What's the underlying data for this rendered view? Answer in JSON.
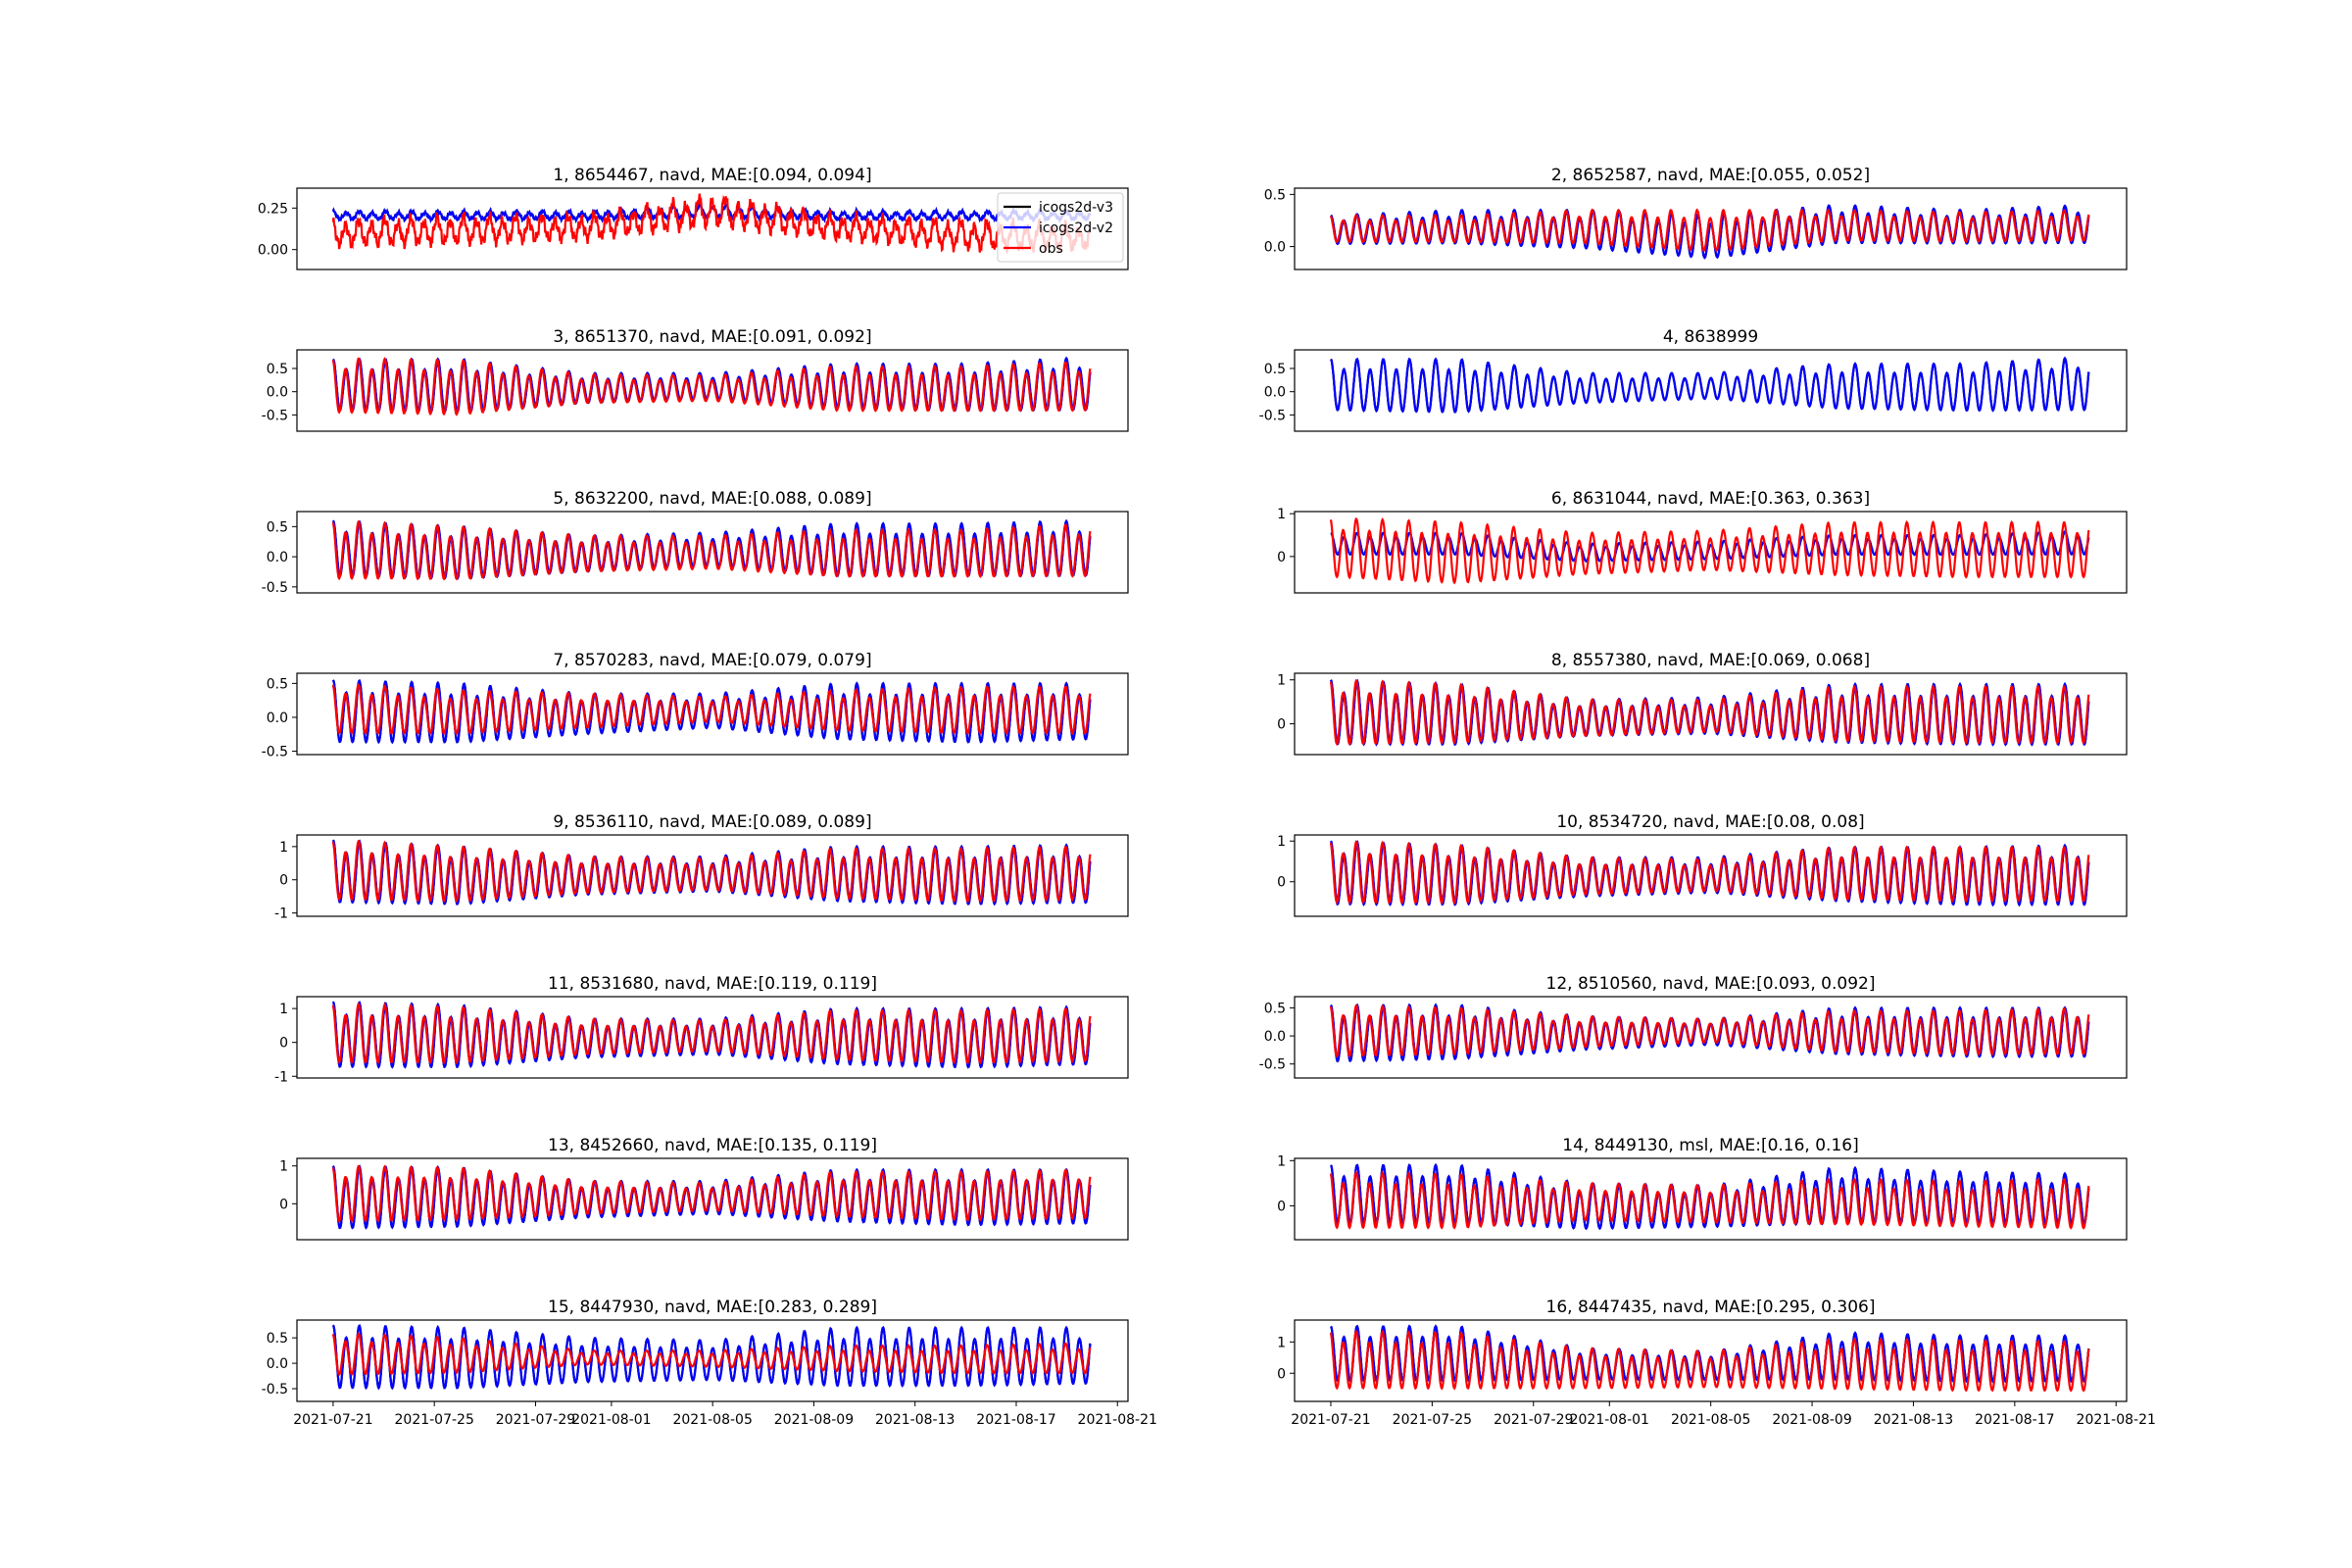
{
  "chart_data": {
    "type": "line",
    "layout": "8x2 grid of subplots",
    "x_ticks": [
      "2021-07-21",
      "2021-07-25",
      "2021-07-29",
      "2021-08-01",
      "2021-08-05",
      "2021-08-09",
      "2021-08-13",
      "2021-08-17",
      "2021-08-21"
    ],
    "xlim": [
      "2021-07-19 13:40",
      "2021-08-21 10:00"
    ],
    "data_range": [
      "2021-07-21",
      "2021-08-20"
    ],
    "envelope_dates": [
      "2021-07-21",
      "2021-07-26",
      "2021-07-31",
      "2021-08-05",
      "2021-08-10",
      "2021-08-15",
      "2021-08-20"
    ],
    "legend": {
      "placement": "upper right of subplot 1",
      "entries": [
        {
          "name": "icogs2d-v3",
          "color": "#000000"
        },
        {
          "name": "icogs2d-v2",
          "color": "#0000ff"
        },
        {
          "name": "obs",
          "color": "#ff0000"
        }
      ]
    },
    "grid": false,
    "panels": [
      {
        "title": "1, 8654467, navd, MAE:[0.094, 0.094]",
        "ylim": [
          -0.12,
          0.37
        ],
        "yticks": [
          "0.25",
          "0.00"
        ],
        "ytick_values": [
          0.25,
          0
        ],
        "model": {
          "high": [
            0.23,
            0.23,
            0.23,
            0.27,
            0.23,
            0.23,
            0.23
          ],
          "low": [
            0.18,
            0.18,
            0.18,
            0.19,
            0.18,
            0.18,
            0.18
          ]
        },
        "obs": {
          "high": [
            0.17,
            0.2,
            0.2,
            0.32,
            0.2,
            0.17,
            0.14
          ],
          "low": [
            0.02,
            0.03,
            0.06,
            0.14,
            0.06,
            0.0,
            0.0
          ]
        }
      },
      {
        "title": "2, 8652587, navd, MAE:[0.055, 0.052]",
        "ylim": [
          -0.22,
          0.56
        ],
        "yticks": [
          "0.5",
          "0.0"
        ],
        "ytick_values": [
          0.5,
          0
        ],
        "model": {
          "high": [
            0.3,
            0.35,
            0.35,
            0.3,
            0.4,
            0.35,
            0.4
          ],
          "low": [
            0.0,
            0.0,
            -0.05,
            -0.15,
            0.0,
            0.0,
            0.0
          ]
        },
        "obs": {
          "high": [
            0.3,
            0.3,
            0.35,
            0.35,
            0.35,
            0.33,
            0.35
          ],
          "low": [
            0.02,
            0.02,
            0.0,
            -0.08,
            0.03,
            0.02,
            0.03
          ]
        }
      },
      {
        "title": "3, 8651370, navd, MAE:[0.091, 0.092]",
        "ylim": [
          -0.85,
          0.9
        ],
        "yticks": [
          "0.5",
          "0.0",
          "-0.5"
        ],
        "ytick_values": [
          0.5,
          0,
          -0.5
        ],
        "model": {
          "high": [
            0.7,
            0.7,
            0.4,
            0.4,
            0.6,
            0.6,
            0.75
          ],
          "low": [
            -0.5,
            -0.55,
            -0.3,
            -0.2,
            -0.45,
            -0.5,
            -0.5
          ]
        },
        "obs": {
          "high": [
            0.72,
            0.68,
            0.38,
            0.35,
            0.55,
            0.55,
            0.65
          ],
          "low": [
            -0.55,
            -0.6,
            -0.3,
            -0.25,
            -0.5,
            -0.5,
            -0.5
          ]
        }
      },
      {
        "title": "4, 8638999",
        "ylim": [
          -0.85,
          0.9
        ],
        "yticks": [
          "0.5",
          "0.0",
          "-0.5"
        ],
        "ytick_values": [
          0.5,
          0,
          -0.5
        ],
        "model": {
          "high": [
            0.7,
            0.7,
            0.4,
            0.4,
            0.6,
            0.6,
            0.75
          ],
          "low": [
            -0.5,
            -0.55,
            -0.3,
            -0.2,
            -0.45,
            -0.5,
            -0.5
          ]
        },
        "obs": null
      },
      {
        "title": "5, 8632200, navd, MAE:[0.088, 0.089]",
        "ylim": [
          -0.6,
          0.75
        ],
        "yticks": [
          "0.5",
          "0.0",
          "-0.5"
        ],
        "ytick_values": [
          0.5,
          0,
          -0.5
        ],
        "model": {
          "high": [
            0.6,
            0.5,
            0.35,
            0.4,
            0.55,
            0.55,
            0.6
          ],
          "low": [
            -0.4,
            -0.45,
            -0.3,
            -0.2,
            -0.4,
            -0.4,
            -0.4
          ]
        },
        "obs": {
          "high": [
            0.6,
            0.5,
            0.35,
            0.35,
            0.45,
            0.45,
            0.55
          ],
          "low": [
            -0.45,
            -0.45,
            -0.3,
            -0.25,
            -0.4,
            -0.4,
            -0.4
          ]
        }
      },
      {
        "title": "6, 8631044, navd, MAE:[0.363, 0.363]",
        "ylim": [
          -0.85,
          1.05
        ],
        "yticks": [
          "1",
          "0"
        ],
        "ytick_values": [
          1,
          0
        ],
        "model": {
          "high": [
            0.55,
            0.55,
            0.3,
            0.35,
            0.5,
            0.5,
            0.6
          ],
          "low": [
            0.0,
            0.0,
            -0.15,
            -0.1,
            0.0,
            0.0,
            0.0
          ]
        },
        "obs": {
          "high": [
            0.9,
            0.8,
            0.55,
            0.6,
            0.8,
            0.8,
            0.8
          ],
          "low": [
            -0.6,
            -0.75,
            -0.5,
            -0.4,
            -0.55,
            -0.6,
            -0.6
          ]
        }
      },
      {
        "title": "7, 8570283, navd, MAE:[0.079, 0.079]",
        "ylim": [
          -0.55,
          0.65
        ],
        "yticks": [
          "0.5",
          "0.0",
          "-0.5"
        ],
        "ytick_values": [
          0.5,
          0,
          -0.5
        ],
        "model": {
          "high": [
            0.55,
            0.5,
            0.35,
            0.35,
            0.5,
            0.5,
            0.5
          ],
          "low": [
            -0.45,
            -0.45,
            -0.3,
            -0.2,
            -0.4,
            -0.45,
            -0.4
          ]
        },
        "obs": {
          "high": [
            0.5,
            0.4,
            0.35,
            0.3,
            0.4,
            0.45,
            0.45
          ],
          "low": [
            -0.3,
            -0.3,
            -0.2,
            -0.1,
            -0.25,
            -0.3,
            -0.3
          ]
        }
      },
      {
        "title": "8, 8557380, navd, MAE:[0.069, 0.068]",
        "ylim": [
          -0.7,
          1.15
        ],
        "yticks": [
          "1",
          "0"
        ],
        "ytick_values": [
          1,
          0
        ],
        "model": {
          "high": [
            1.0,
            0.9,
            0.55,
            0.6,
            0.9,
            0.9,
            0.9
          ],
          "low": [
            -0.6,
            -0.6,
            -0.35,
            -0.3,
            -0.55,
            -0.6,
            -0.6
          ]
        },
        "obs": {
          "high": [
            1.0,
            0.9,
            0.55,
            0.55,
            0.85,
            0.85,
            0.85
          ],
          "low": [
            -0.6,
            -0.55,
            -0.35,
            -0.25,
            -0.5,
            -0.55,
            -0.55
          ]
        }
      },
      {
        "title": "9, 8536110, navd, MAE:[0.089, 0.089]",
        "ylim": [
          -1.1,
          1.35
        ],
        "yticks": [
          "1",
          "0",
          "-1"
        ],
        "ytick_values": [
          1,
          0,
          -1
        ],
        "model": {
          "high": [
            1.2,
            1.0,
            0.7,
            0.7,
            1.0,
            1.0,
            1.05
          ],
          "low": [
            -0.85,
            -0.9,
            -0.55,
            -0.45,
            -0.8,
            -0.9,
            -0.85
          ]
        },
        "obs": {
          "high": [
            1.2,
            1.0,
            0.7,
            0.65,
            0.95,
            0.95,
            1.0
          ],
          "low": [
            -0.75,
            -0.8,
            -0.5,
            -0.4,
            -0.7,
            -0.8,
            -0.75
          ]
        }
      },
      {
        "title": "10, 8534720, navd, MAE:[0.08, 0.08]",
        "ylim": [
          -0.85,
          1.15
        ],
        "yticks": [
          "1",
          "0"
        ],
        "ytick_values": [
          1,
          0
        ],
        "model": {
          "high": [
            1.0,
            0.9,
            0.6,
            0.6,
            0.85,
            0.85,
            0.9
          ],
          "low": [
            -0.7,
            -0.7,
            -0.45,
            -0.35,
            -0.6,
            -0.7,
            -0.7
          ]
        },
        "obs": {
          "high": [
            1.0,
            0.9,
            0.6,
            0.55,
            0.85,
            0.85,
            0.85
          ],
          "low": [
            -0.65,
            -0.65,
            -0.4,
            -0.3,
            -0.55,
            -0.6,
            -0.6
          ]
        }
      },
      {
        "title": "11, 8531680, navd, MAE:[0.119, 0.119]",
        "ylim": [
          -1.05,
          1.35
        ],
        "yticks": [
          "1",
          "0",
          "-1"
        ],
        "ytick_values": [
          1,
          0,
          -1
        ],
        "model": {
          "high": [
            1.2,
            1.1,
            0.7,
            0.7,
            1.0,
            1.0,
            1.05
          ],
          "low": [
            -0.9,
            -0.9,
            -0.55,
            -0.45,
            -0.8,
            -0.9,
            -0.8
          ]
        },
        "obs": {
          "high": [
            1.15,
            1.05,
            0.7,
            0.65,
            0.95,
            0.95,
            1.0
          ],
          "low": [
            -0.75,
            -0.75,
            -0.45,
            -0.35,
            -0.65,
            -0.75,
            -0.7
          ]
        }
      },
      {
        "title": "12, 8510560, navd, MAE:[0.093, 0.092]",
        "ylim": [
          -0.75,
          0.7
        ],
        "yticks": [
          "0.5",
          "0.0",
          "-0.5"
        ],
        "ytick_values": [
          0.5,
          0,
          -0.5
        ],
        "model": {
          "high": [
            0.55,
            0.55,
            0.35,
            0.3,
            0.5,
            0.5,
            0.5
          ],
          "low": [
            -0.55,
            -0.5,
            -0.3,
            -0.2,
            -0.4,
            -0.45,
            -0.45
          ]
        },
        "obs": {
          "high": [
            0.55,
            0.5,
            0.35,
            0.3,
            0.45,
            0.45,
            0.5
          ],
          "low": [
            -0.45,
            -0.4,
            -0.25,
            -0.15,
            -0.35,
            -0.4,
            -0.4
          ]
        }
      },
      {
        "title": "13, 8452660, navd, MAE:[0.135, 0.119]",
        "ylim": [
          -0.95,
          1.2
        ],
        "yticks": [
          "1",
          "0"
        ],
        "ytick_values": [
          1,
          0
        ],
        "model": {
          "high": [
            1.0,
            0.95,
            0.6,
            0.6,
            0.9,
            0.9,
            0.9
          ],
          "low": [
            -0.8,
            -0.75,
            -0.45,
            -0.35,
            -0.6,
            -0.7,
            -0.65
          ]
        },
        "obs": {
          "high": [
            1.0,
            0.95,
            0.6,
            0.55,
            0.85,
            0.85,
            0.9
          ],
          "low": [
            -0.6,
            -0.55,
            -0.35,
            -0.25,
            -0.45,
            -0.55,
            -0.5
          ]
        }
      },
      {
        "title": "14, 8449130, msl, MAE:[0.16, 0.16]",
        "ylim": [
          -0.75,
          1.05
        ],
        "yticks": [
          "1",
          "0"
        ],
        "ytick_values": [
          1,
          0
        ],
        "model": {
          "high": [
            0.9,
            0.9,
            0.5,
            0.45,
            0.85,
            0.75,
            0.7
          ],
          "low": [
            -0.5,
            -0.5,
            -0.6,
            -0.55,
            -0.5,
            -0.5,
            -0.5
          ]
        },
        "obs": {
          "high": [
            0.75,
            0.7,
            0.5,
            0.45,
            0.6,
            0.55,
            0.6
          ],
          "low": [
            -0.6,
            -0.6,
            -0.4,
            -0.45,
            -0.5,
            -0.55,
            -0.6
          ]
        }
      },
      {
        "title": "15, 8447930, navd, MAE:[0.283, 0.289]",
        "ylim": [
          -0.75,
          0.85
        ],
        "yticks": [
          "0.5",
          "0.0",
          "-0.5"
        ],
        "ytick_values": [
          0.5,
          0,
          -0.5
        ],
        "model": {
          "high": [
            0.75,
            0.7,
            0.5,
            0.45,
            0.7,
            0.7,
            0.7
          ],
          "low": [
            -0.6,
            -0.6,
            -0.45,
            -0.4,
            -0.55,
            -0.55,
            -0.5
          ]
        },
        "obs": {
          "high": [
            0.6,
            0.5,
            0.25,
            0.25,
            0.35,
            0.35,
            0.4
          ],
          "low": [
            -0.3,
            -0.25,
            -0.05,
            -0.1,
            -0.2,
            -0.25,
            -0.25
          ]
        }
      },
      {
        "title": "16, 8447435, navd, MAE:[0.295, 0.306]",
        "ylim": [
          -0.9,
          1.7
        ],
        "yticks": [
          "1",
          "0"
        ],
        "ytick_values": [
          1,
          0
        ],
        "model": {
          "high": [
            1.5,
            1.5,
            0.8,
            0.7,
            1.3,
            1.2,
            1.2
          ],
          "low": [
            -0.4,
            -0.4,
            -0.3,
            -0.3,
            -0.35,
            -0.4,
            -0.4
          ]
        },
        "obs": {
          "high": [
            1.35,
            1.3,
            0.8,
            0.7,
            1.1,
            1.05,
            1.0
          ],
          "low": [
            -0.65,
            -0.65,
            -0.6,
            -0.55,
            -0.65,
            -0.7,
            -0.7
          ]
        }
      }
    ]
  }
}
